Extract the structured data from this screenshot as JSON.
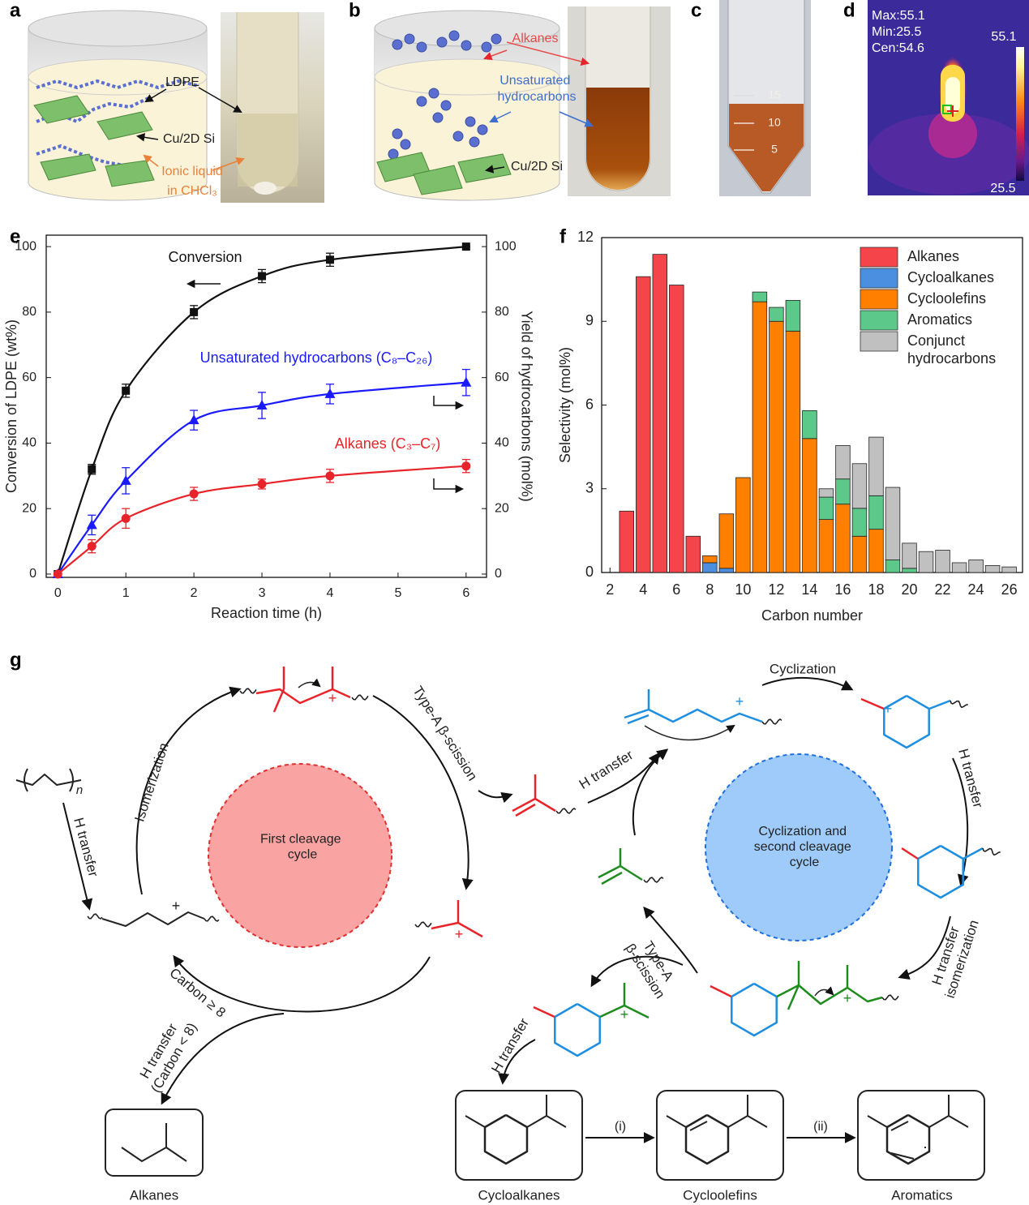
{
  "panels": {
    "a": {
      "label": "a",
      "ldpe": "LDPE",
      "catalyst": "Cu/2D Si",
      "solvent_line1": "Ionic liquid",
      "solvent_line2": "in CHCl₃"
    },
    "b": {
      "label": "b",
      "alkanes": "Alkanes",
      "unsaturated": "Unsaturated hydrocarbons",
      "catalyst": "Cu/2D Si"
    },
    "c": {
      "label": "c",
      "graduations": [
        "15",
        "10",
        "5"
      ]
    },
    "d": {
      "label": "d",
      "readouts": [
        "Max:55.1",
        "Min:25.5",
        "Cen:54.6"
      ],
      "scale_max": "55.1",
      "scale_min": "25.5"
    }
  },
  "chart_data": [
    {
      "panel": "e",
      "type": "line",
      "xlabel": "Reaction time (h)",
      "ylabel": "Conversion of LDPE (wt%)",
      "y2label": "Yield of hydrocarbons (mol%)",
      "x": [
        0,
        0.5,
        1,
        2,
        3,
        4,
        6
      ],
      "series": [
        {
          "name": "Conversion",
          "color": "#111111",
          "marker": "square",
          "values": [
            0,
            32,
            56,
            80,
            91,
            96,
            100
          ],
          "errors": [
            0,
            1.5,
            2,
            2,
            2,
            2,
            0
          ]
        },
        {
          "name": "Unsaturated hydrocarbons (C₈–C₂₆)",
          "color": "#1a1aff",
          "marker": "triangle",
          "axis": "y2",
          "values": [
            0,
            15,
            28.5,
            47,
            51.5,
            55,
            58.5
          ],
          "errors": [
            0,
            3,
            4,
            3,
            4,
            3,
            4
          ]
        },
        {
          "name": "Alkanes (C₃–C₇)",
          "color": "#e8242b",
          "marker": "circle",
          "axis": "y2",
          "values": [
            0,
            8.5,
            17,
            24.5,
            27.5,
            30,
            33
          ],
          "errors": [
            0,
            2,
            3,
            2,
            1.5,
            2,
            2
          ]
        }
      ],
      "xlim": [
        -0.17,
        6.3
      ],
      "ylim": [
        -1,
        103.5
      ],
      "y2lim": [
        -1,
        103.5
      ],
      "xticks": [
        0,
        1,
        2,
        3,
        4,
        5,
        6
      ],
      "yticks": [
        0,
        20,
        40,
        60,
        80,
        100
      ],
      "y2ticks": [
        0,
        20,
        40,
        60,
        80,
        100
      ]
    },
    {
      "panel": "f",
      "type": "bar",
      "stacked": true,
      "xlabel": "Carbon number",
      "ylabel": "Selectivity (mol%)",
      "legend": "upper right",
      "x": [
        3,
        4,
        5,
        6,
        7,
        8,
        9,
        10,
        11,
        12,
        13,
        14,
        15,
        16,
        17,
        18,
        19,
        20,
        21,
        22,
        23,
        24,
        25,
        26
      ],
      "series": [
        {
          "name": "Alkanes",
          "color": "#f5454a",
          "values": [
            2.2,
            10.6,
            11.4,
            10.3,
            1.3,
            0,
            0,
            0,
            0,
            0,
            0,
            0,
            0,
            0,
            0,
            0,
            0,
            0,
            0,
            0,
            0,
            0,
            0,
            0
          ]
        },
        {
          "name": "Cycloalkanes",
          "color": "#4a8fe0",
          "values": [
            0,
            0,
            0,
            0,
            0,
            0.35,
            0.15,
            0,
            0,
            0,
            0,
            0,
            0,
            0,
            0,
            0,
            0,
            0,
            0,
            0,
            0,
            0,
            0,
            0
          ]
        },
        {
          "name": "Cycloolefins",
          "color": "#ff8000",
          "values": [
            0,
            0,
            0,
            0,
            0,
            0.25,
            1.95,
            3.4,
            9.7,
            9.0,
            8.65,
            4.8,
            1.9,
            2.45,
            1.3,
            1.55,
            0,
            0,
            0,
            0,
            0,
            0,
            0,
            0
          ]
        },
        {
          "name": "Aromatics",
          "color": "#5cc98a",
          "values": [
            0,
            0,
            0,
            0,
            0,
            0,
            0,
            0,
            0.35,
            0.5,
            1.1,
            1.0,
            0.8,
            0.9,
            1.0,
            1.2,
            0.45,
            0.15,
            0,
            0,
            0,
            0,
            0,
            0
          ]
        },
        {
          "name": "Conjunct hydrocarbons",
          "color": "#c0c0c0",
          "values": [
            0,
            0,
            0,
            0,
            0,
            0,
            0,
            0,
            0,
            0,
            0,
            0,
            0.3,
            1.2,
            1.6,
            2.1,
            2.6,
            0.9,
            0.75,
            0.8,
            0.35,
            0.45,
            0.25,
            0.2
          ]
        }
      ],
      "xlim": [
        1.5,
        26.8
      ],
      "ylim": [
        0,
        12
      ],
      "xticks": [
        2,
        4,
        6,
        8,
        10,
        12,
        14,
        16,
        18,
        20,
        22,
        24,
        26
      ],
      "yticks": [
        0,
        3,
        6,
        9,
        12
      ]
    }
  ],
  "scheme": {
    "label": "g",
    "cycles": [
      "First cleavage cycle",
      "Cyclization and second cleavage cycle"
    ],
    "steps": {
      "isomerization": "Isomerization",
      "beta_scission_1": "Type-A β-scission",
      "h_transfer_polymer": "H transfer",
      "h_transfer_2": "H transfer",
      "cyclization": "Cyclization",
      "h_transfer_3": "H transfer",
      "h_transfer_isomerization": "H transfer isomerization",
      "beta_scission_2": "Type-A β-scission",
      "h_transfer_4": "H transfer",
      "carbon_ge_8": "Carbon ≥ 8",
      "h_transfer_short": "H transfer (Carbon < 8)",
      "step_i": "(i)",
      "step_ii": "(ii)"
    },
    "charge": "+",
    "repeat": "n",
    "products": [
      "Alkanes",
      "Cycloalkanes",
      "Cycloolefins",
      "Aromatics"
    ]
  }
}
